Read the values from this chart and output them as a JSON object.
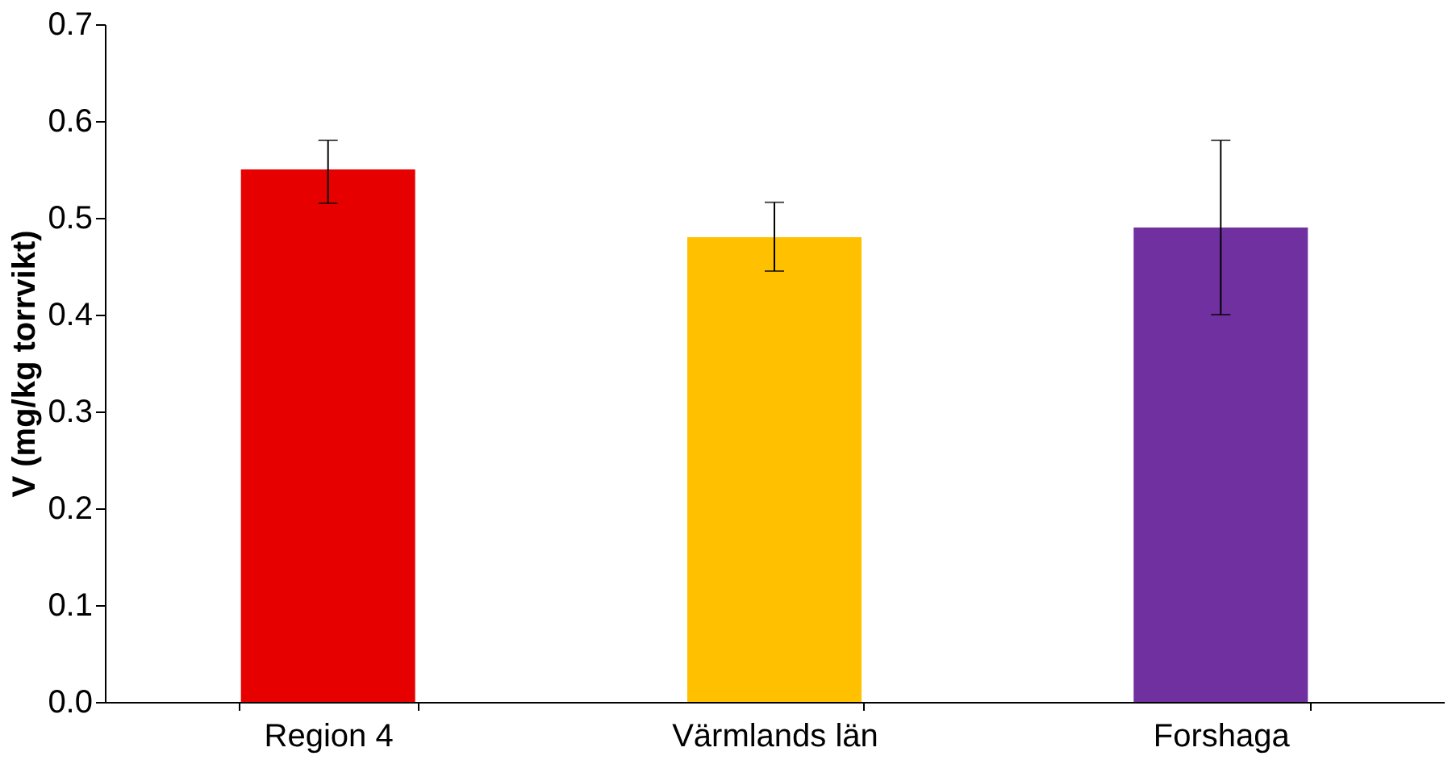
{
  "chart_data": {
    "type": "bar",
    "ylabel": "V (mg/kg torrvikt)",
    "categories": [
      "Region 4",
      "Värmlands län",
      "Forshaga"
    ],
    "values": [
      0.55,
      0.48,
      0.49
    ],
    "colors": [
      "#e60000",
      "#ffc000",
      "#7030a0"
    ],
    "errors": [
      [
        0.515,
        0.58
      ],
      [
        0.445,
        0.516
      ],
      [
        0.4,
        0.58
      ]
    ],
    "ylim": [
      0,
      0.7
    ],
    "yticks": [
      {
        "value": 0,
        "label": "0.0"
      },
      0.1,
      0.2,
      0.3,
      0.4,
      0.5,
      0.6,
      0.7
    ],
    "grid": false
  }
}
